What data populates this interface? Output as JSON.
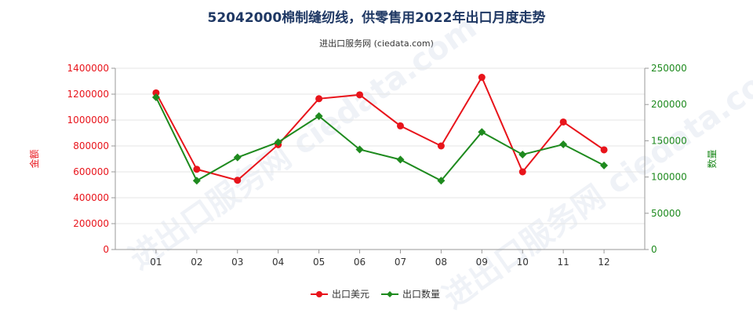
{
  "header": {
    "title": "52042000棉制缝纫线，供零售用2022年出口月度走势",
    "subtitle": "进出口服务网 (ciedata.com)"
  },
  "watermark_text": "进出口服务网 ciedata.com",
  "colors": {
    "amount": "#e8141b",
    "quantity": "#1e8a1e",
    "title": "#1f3864",
    "axis": "#333333",
    "grid": "#e6e6e6"
  },
  "chart_data": {
    "type": "line",
    "categories": [
      "01",
      "02",
      "03",
      "04",
      "05",
      "06",
      "07",
      "08",
      "09",
      "10",
      "11",
      "12"
    ],
    "series": [
      {
        "name": "出口美元",
        "axis": "left",
        "values": [
          1210000,
          620000,
          535000,
          810000,
          1165000,
          1195000,
          955000,
          800000,
          1330000,
          600000,
          985000,
          770000
        ]
      },
      {
        "name": "出口数量",
        "axis": "right",
        "values": [
          210000,
          95000,
          127000,
          148000,
          184000,
          138000,
          124000,
          95000,
          162000,
          131000,
          145000,
          116000
        ]
      }
    ],
    "yleft": {
      "label": "金额",
      "ticks": [
        "0",
        "200000",
        "400000",
        "600000",
        "800000",
        "1000000",
        "1200000",
        "1400000"
      ],
      "ylim": [
        0,
        1400000
      ]
    },
    "yright": {
      "label": "数量",
      "ticks": [
        "0",
        "50000",
        "100000",
        "150000",
        "200000",
        "250000"
      ],
      "ylim": [
        0,
        250000
      ]
    },
    "legend_position": "bottom"
  }
}
